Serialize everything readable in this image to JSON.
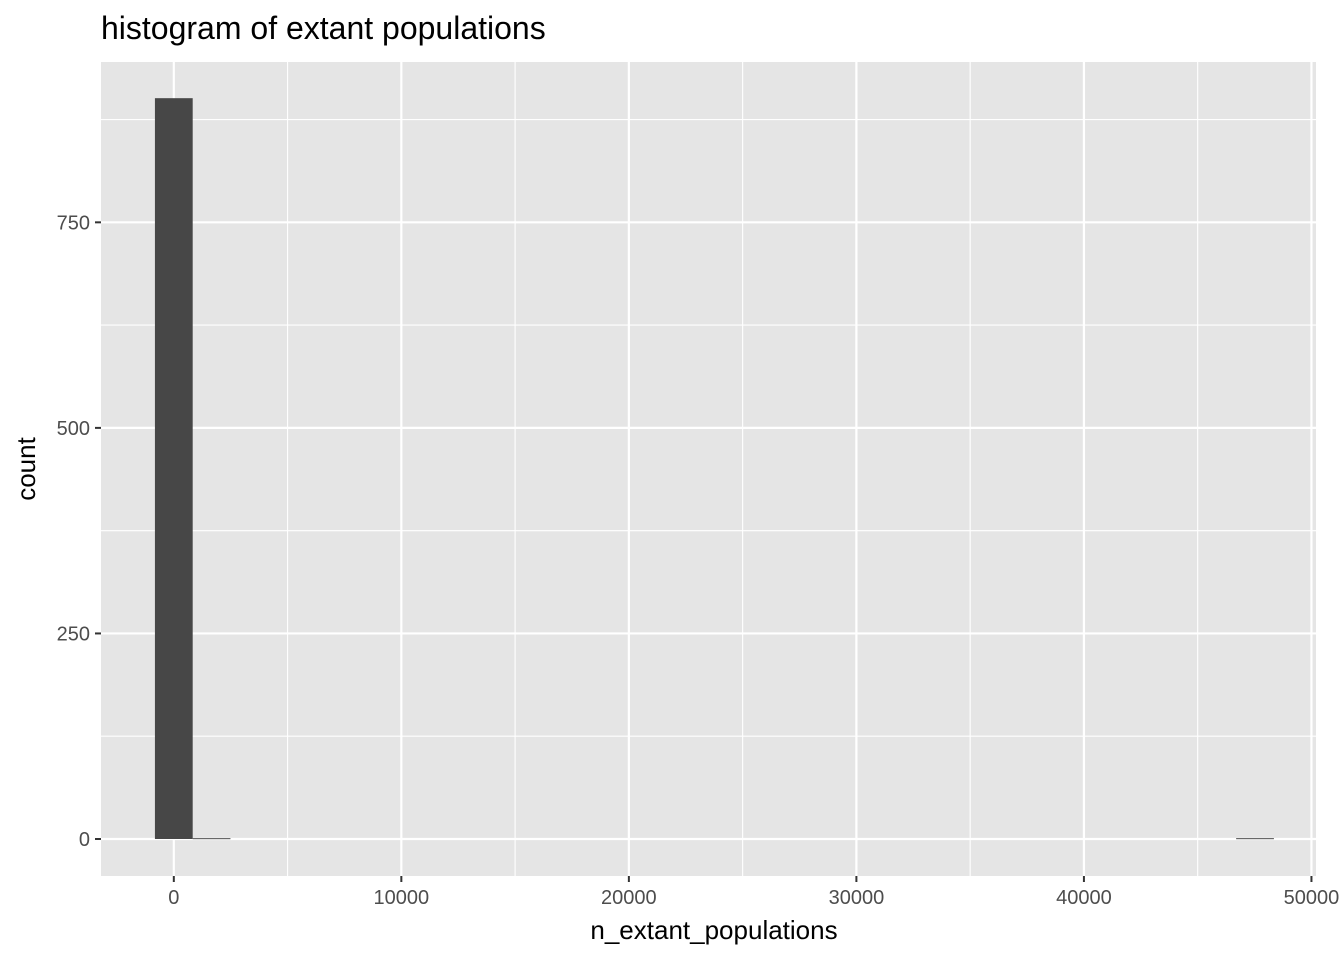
{
  "chart_data": {
    "type": "bar",
    "title": "histogram of extant populations",
    "xlabel": "n_extant_populations",
    "ylabel": "count",
    "xlim": [
      -3200,
      50200
    ],
    "ylim": [
      -45,
      945
    ],
    "x_ticks": [
      0,
      10000,
      20000,
      30000,
      40000,
      50000
    ],
    "x_tick_labels": [
      "0",
      "10000",
      "20000",
      "30000",
      "40000",
      "50000"
    ],
    "y_ticks": [
      0,
      250,
      500,
      750
    ],
    "y_tick_labels": [
      "0",
      "250",
      "500",
      "750"
    ],
    "x_minor_ticks": [
      5000,
      15000,
      25000,
      35000,
      45000
    ],
    "y_minor_ticks": [
      125,
      375,
      625,
      875
    ],
    "grid": true,
    "bin_width": 1660,
    "bins": [
      {
        "center": 0,
        "count": 901
      },
      {
        "center": 1660,
        "count": 1
      },
      {
        "center": 47520,
        "count": 1
      }
    ],
    "colors": {
      "panel": "#e5e5e5",
      "grid": "#ffffff",
      "bar": "#474747",
      "tick": "#333333"
    }
  }
}
